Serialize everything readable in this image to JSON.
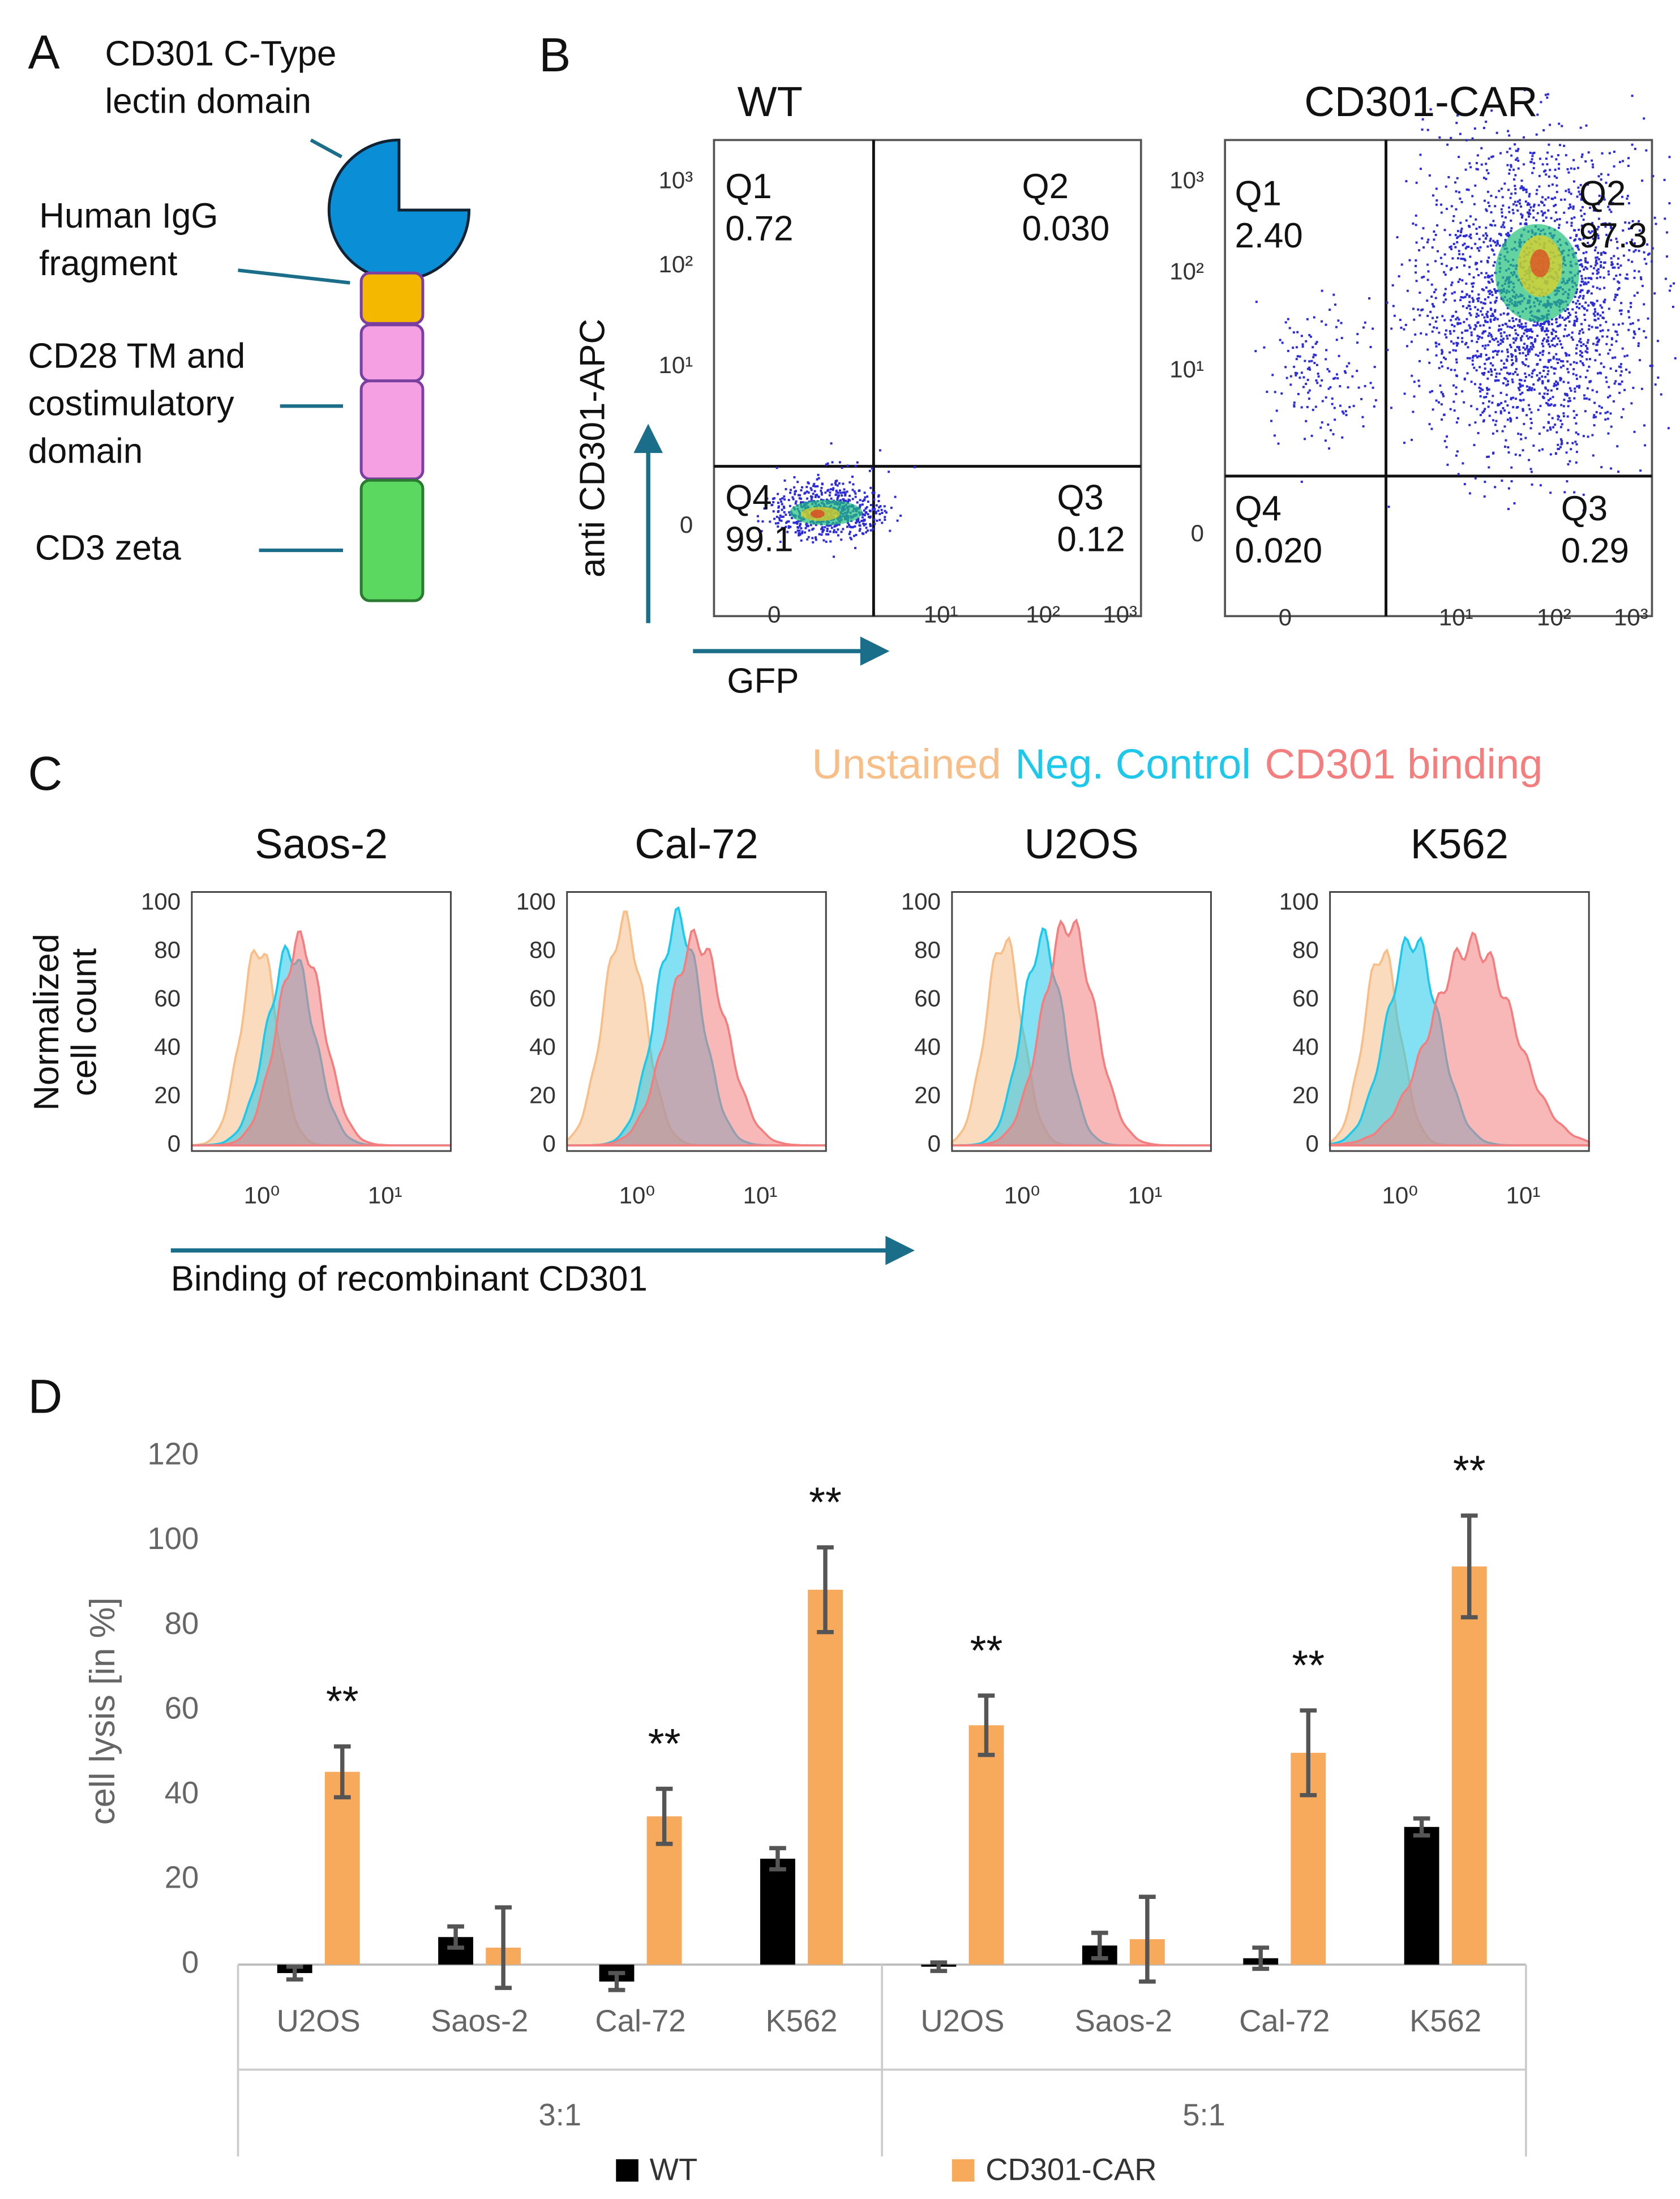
{
  "panel_a": {
    "label": "A",
    "parts": [
      {
        "lines": [
          "CD301 C-Type",
          "lectin domain"
        ]
      },
      {
        "lines": [
          "Human IgG",
          "fragment"
        ]
      },
      {
        "lines": [
          "CD28 TM and",
          "costimulatory",
          "domain"
        ]
      },
      {
        "lines": [
          "CD3 zeta"
        ]
      }
    ]
  },
  "panel_b": {
    "label": "B",
    "y_label": "anti CD301-APC",
    "x_label": "GFP",
    "yticks": [
      "10³",
      "10²",
      "10¹",
      "0"
    ],
    "xticks": [
      "0",
      "10¹",
      "10²",
      "10³"
    ],
    "plots": [
      {
        "title": "WT",
        "quadrants": [
          {
            "name": "Q1",
            "value": "0.72"
          },
          {
            "name": "Q2",
            "value": "0.030"
          },
          {
            "name": "Q4",
            "value": "99.1"
          },
          {
            "name": "Q3",
            "value": "0.12"
          }
        ]
      },
      {
        "title": "CD301-CAR",
        "quadrants": [
          {
            "name": "Q1",
            "value": "2.40"
          },
          {
            "name": "Q2",
            "value": "97.3"
          },
          {
            "name": "Q4",
            "value": "0.020"
          },
          {
            "name": "Q3",
            "value": "0.29"
          }
        ]
      }
    ]
  },
  "panel_c": {
    "label": "C",
    "legend": [
      {
        "name": "Unstained",
        "color": "#f7be88"
      },
      {
        "name": "Neg. Control",
        "color": "#1ec8ea"
      },
      {
        "name": "CD301 binding",
        "color": "#f47e7e"
      }
    ],
    "y_label": [
      "Normalized",
      "cell count"
    ],
    "x_label": "Binding of recombinant CD301",
    "yticks": [
      100,
      80,
      60,
      40,
      20,
      0
    ],
    "xticks": [
      "10⁰",
      "10¹"
    ],
    "plots": [
      "Saos-2",
      "Cal-72",
      "U2OS",
      "K562"
    ]
  },
  "chart_data": {
    "type": "bar",
    "panel_label": "D",
    "y_label": "cell lysis [in %]",
    "categories": [
      "U2OS",
      "Saos-2",
      "Cal-72",
      "K562",
      "U2OS",
      "Saos-2",
      "Cal-72",
      "K562"
    ],
    "groups": [
      "3:1",
      "5:1"
    ],
    "series": [
      {
        "name": "WT",
        "color": "#000000",
        "values": [
          -2,
          6.5,
          -4,
          25,
          -0.5,
          4.5,
          1.5,
          32.5
        ],
        "errors": [
          1.5,
          2.5,
          2,
          2.5,
          1,
          3,
          2.5,
          2
        ]
      },
      {
        "name": "CD301-CAR",
        "color": "#f7a95c",
        "values": [
          45.5,
          4,
          35,
          88.5,
          56.5,
          6,
          50,
          94
        ],
        "errors": [
          6,
          9.5,
          6.5,
          10,
          7,
          10,
          10,
          12
        ]
      }
    ],
    "ylim": [
      0,
      120
    ],
    "yticks": [
      0,
      20,
      40,
      60,
      80,
      100,
      120
    ],
    "annotations": [
      {
        "series": 1,
        "index": 0,
        "text": "**"
      },
      {
        "series": 1,
        "index": 2,
        "text": "**"
      },
      {
        "series": 1,
        "index": 3,
        "text": "**"
      },
      {
        "series": 1,
        "index": 4,
        "text": "**"
      },
      {
        "series": 1,
        "index": 6,
        "text": "**"
      },
      {
        "series": 1,
        "index": 7,
        "text": "**"
      }
    ]
  }
}
